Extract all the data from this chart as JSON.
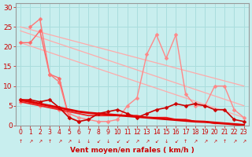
{
  "bg_color": "#c8eeee",
  "grid_color": "#aadddd",
  "xlabel": "Vent moyen/en rafales ( km/h )",
  "xlim": [
    -0.5,
    23.5
  ],
  "ylim": [
    0,
    31
  ],
  "yticks": [
    0,
    5,
    10,
    15,
    20,
    25,
    30
  ],
  "xticks": [
    0,
    1,
    2,
    3,
    4,
    5,
    6,
    7,
    8,
    9,
    10,
    11,
    12,
    13,
    14,
    15,
    16,
    17,
    18,
    19,
    20,
    21,
    22,
    23
  ],
  "lines": [
    {
      "note": "long diagonal line 1: from ~21 at x=0 to ~2 at x=23, light pink, no marker",
      "x": [
        0,
        23
      ],
      "y": [
        21,
        2
      ],
      "color": "#ffaaaa",
      "lw": 0.9,
      "marker": null,
      "ms": 0,
      "zorder": 2
    },
    {
      "note": "long diagonal line 2: from ~24 at x=0 to ~5 at x=23, light pink, no marker",
      "x": [
        0,
        23
      ],
      "y": [
        24,
        5
      ],
      "color": "#ffaaaa",
      "lw": 0.9,
      "marker": null,
      "ms": 0,
      "zorder": 2
    },
    {
      "note": "long diagonal line 3: from ~25 at x=0 to ~10 at x=23, light pink, no marker",
      "x": [
        0,
        23
      ],
      "y": [
        25,
        10
      ],
      "color": "#ffaaaa",
      "lw": 0.9,
      "marker": null,
      "ms": 0,
      "zorder": 2
    },
    {
      "note": "jagged line with peaks at 14 and 16, light pink with markers",
      "x": [
        0,
        1,
        2,
        3,
        4,
        5,
        6,
        7,
        8,
        9,
        10,
        11,
        12,
        13,
        14,
        15,
        16,
        17,
        18,
        19,
        20,
        21,
        22,
        23
      ],
      "y": [
        6,
        6,
        5,
        5,
        4,
        3,
        2,
        1.5,
        1,
        1,
        1.5,
        5,
        7,
        18,
        23,
        17,
        23,
        8,
        5,
        5,
        10,
        10,
        4,
        2
      ],
      "color": "#ff8888",
      "lw": 1.0,
      "marker": "D",
      "ms": 2.5,
      "zorder": 3
    },
    {
      "note": "short line from x=0 (~21) to x=1 (~21) to x=2 (~24) then down steeply",
      "x": [
        0,
        1,
        2,
        3,
        4,
        5,
        6
      ],
      "y": [
        21,
        21,
        24,
        13,
        12,
        2,
        1
      ],
      "color": "#ff6666",
      "lw": 1.0,
      "marker": "D",
      "ms": 2.5,
      "zorder": 3
    },
    {
      "note": "medium line starting at x=1 (~25) going to x=3 (~13) down",
      "x": [
        1,
        2,
        3,
        4,
        5
      ],
      "y": [
        25,
        27,
        13,
        11,
        2
      ],
      "color": "#ff7777",
      "lw": 1.0,
      "marker": "D",
      "ms": 2.5,
      "zorder": 3
    },
    {
      "note": "bottom flat red line - mean wind, slight decline",
      "x": [
        0,
        1,
        2,
        3,
        4,
        5,
        6,
        7,
        8,
        9,
        10,
        11,
        12,
        13,
        14,
        15,
        16,
        17,
        18,
        19,
        20,
        21,
        22,
        23
      ],
      "y": [
        6.5,
        6.0,
        5.5,
        5.0,
        4.5,
        4.0,
        3.5,
        3.2,
        3.0,
        2.8,
        2.6,
        2.4,
        2.2,
        2.0,
        1.8,
        1.6,
        1.4,
        1.2,
        1.0,
        0.9,
        0.7,
        0.5,
        0.3,
        0.1
      ],
      "color": "#dd0000",
      "lw": 2.0,
      "marker": null,
      "ms": 0,
      "zorder": 6
    },
    {
      "note": "red line slightly above, with small bumps",
      "x": [
        0,
        1,
        2,
        3,
        4,
        5,
        6,
        7,
        8,
        9,
        10,
        11,
        12,
        13,
        14,
        15,
        16,
        17,
        18,
        19,
        20,
        21,
        22,
        23
      ],
      "y": [
        6.5,
        6.5,
        6.0,
        6.5,
        4.5,
        2.0,
        1.0,
        1.5,
        3.0,
        3.5,
        4.0,
        3.0,
        2.0,
        3.0,
        4.0,
        4.5,
        5.5,
        5.0,
        5.5,
        5.0,
        4.0,
        4.0,
        1.5,
        1.0
      ],
      "color": "#cc0000",
      "lw": 1.2,
      "marker": "D",
      "ms": 2.5,
      "zorder": 5
    },
    {
      "note": "another red line",
      "x": [
        0,
        1,
        2,
        3,
        4,
        5,
        6,
        7,
        8,
        9,
        10,
        11,
        12,
        13,
        14,
        15,
        16,
        17,
        18,
        19,
        20,
        21,
        22,
        23
      ],
      "y": [
        6.0,
        5.5,
        5.0,
        4.5,
        4.0,
        3.5,
        3.0,
        2.5,
        2.5,
        2.5,
        2.5,
        2.5,
        2.5,
        2.0,
        2.0,
        2.0,
        1.5,
        1.5,
        1.0,
        1.0,
        0.5,
        0.5,
        0.3,
        0.1
      ],
      "color": "#ee2222",
      "lw": 1.3,
      "marker": null,
      "ms": 0,
      "zorder": 4
    }
  ],
  "wind_arrows": [
    "↑",
    "↗",
    "↗",
    "↑",
    "↗",
    "↗",
    "↓",
    "↓",
    "↙",
    "↓",
    "↙",
    "↙",
    "↗",
    "↗",
    "↙",
    "↓",
    "↙",
    "↑",
    "↗",
    "↗",
    "↗",
    "↑",
    "↗",
    "↗"
  ],
  "xlabel_color": "#cc0000",
  "tick_color": "#cc0000",
  "axis_color": "#999999"
}
